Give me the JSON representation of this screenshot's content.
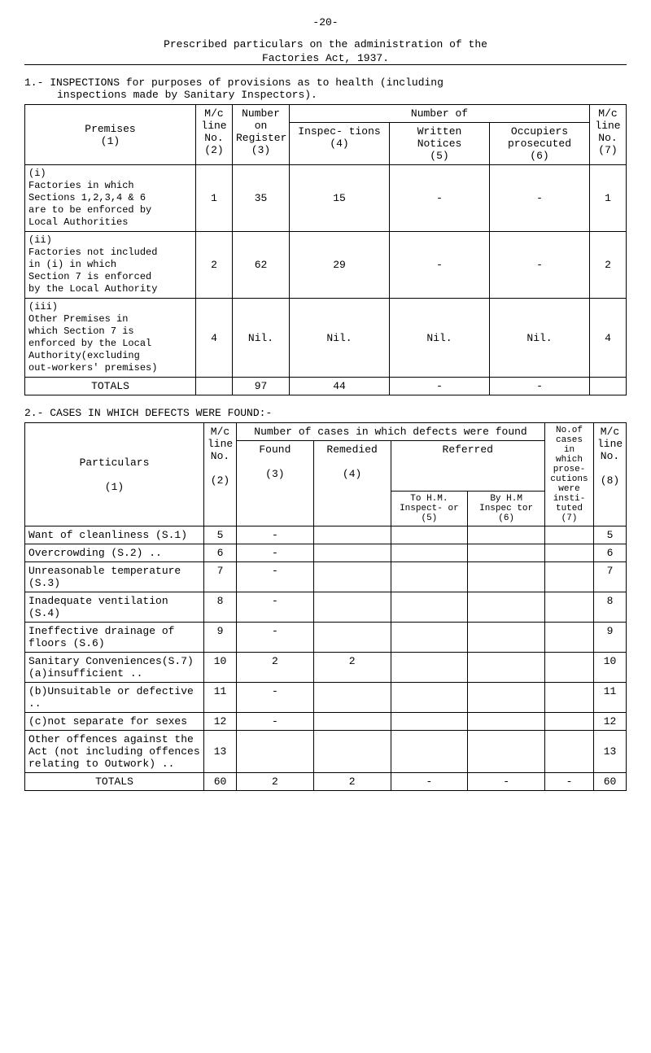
{
  "page_number": "-20-",
  "heading": {
    "line1": "Prescribed particulars on the administration of the",
    "line2": "Factories Act, 1937."
  },
  "section1": {
    "num": "1.-",
    "text_line1": "INSPECTIONS for purposes of provisions as to health (including",
    "text_line2": "inspections made by Sanitary Inspectors)."
  },
  "table1": {
    "headers": {
      "premises": "Premises",
      "premises_sub": "(1)",
      "mc_line": "M/c line No.",
      "mc_line_sub": "(2)",
      "num_on_reg": "Number on Register",
      "num_on_reg_sub": "(3)",
      "number_of": "Number of",
      "inspections": "Inspec- tions",
      "inspections_sub": "(4)",
      "written": "Written Notices",
      "written_sub": "(5)",
      "occupiers": "Occupiers prosecuted",
      "occupiers_sub": "(6)",
      "mc_line2": "M/c line No.",
      "mc_line2_sub": "(7)"
    },
    "rows": [
      {
        "roman": "(i)",
        "label": "Factories in which Sections 1,2,3,4 & 6 are to be enforced by Local Authorities",
        "c2": "1",
        "c3": "35",
        "c4": "15",
        "c5": "-",
        "c6": "-",
        "c7": "1"
      },
      {
        "roman": "(ii)",
        "label": "Factories not included in (i) in which Section 7 is enforced by the Local Authority",
        "c2": "2",
        "c3": "62",
        "c4": "29",
        "c5": "-",
        "c6": "-",
        "c7": "2"
      },
      {
        "roman": "(iii)",
        "label": "Other Premises in which Section 7 is enforced by the Local Authority(excluding out-workers' premises)",
        "c2": "4",
        "c3": "Nil.",
        "c4": "Nil.",
        "c5": "Nil.",
        "c6": "Nil.",
        "c7": "4"
      }
    ],
    "totals": {
      "label": "TOTALS",
      "c2": "",
      "c3": "97",
      "c4": "44",
      "c5": "-",
      "c6": "-",
      "c7": ""
    }
  },
  "section2": {
    "num": "2.-",
    "text": "CASES IN WHICH DEFECTS WERE FOUND:-"
  },
  "table2": {
    "headers": {
      "particulars": "Particulars",
      "particulars_sub": "(1)",
      "mc_line": "M/c line No.",
      "mc_line_sub": "(2)",
      "num_cases": "Number of cases in which defects were found",
      "found": "Found",
      "found_sub": "(3)",
      "remedied": "Remedied",
      "remedied_sub": "(4)",
      "referred": "Referred",
      "to_hm": "To H.M. Inspect- or",
      "to_hm_sub": "(5)",
      "by_hm": "By H.M Inspec tor",
      "by_hm_sub": "(6)",
      "noof": "No.of cases in which prose- cutions were insti- tuted",
      "noof_sub": "(7)",
      "mc_line2": "M/c line No.",
      "mc_line2_sub": "(8)"
    },
    "rows": [
      {
        "label": "Want of cleanliness (S.1)",
        "c2": "5",
        "c3": "-",
        "c4": "",
        "c5": "",
        "c6": "",
        "c7": "",
        "c8": "5"
      },
      {
        "label": "Overcrowding (S.2)      ..",
        "c2": "6",
        "c3": "-",
        "c4": "",
        "c5": "",
        "c6": "",
        "c7": "",
        "c8": "6"
      },
      {
        "label": "Unreasonable temperature (S.3)",
        "c2": "7",
        "c3": "-",
        "c4": "",
        "c5": "",
        "c6": "",
        "c7": "",
        "c8": "7"
      },
      {
        "label": "Inadequate ventilation (S.4)",
        "c2": "8",
        "c3": "-",
        "c4": "",
        "c5": "",
        "c6": "",
        "c7": "",
        "c8": "8"
      },
      {
        "label": "Ineffective drainage of floors          (S.6)",
        "c2": "9",
        "c3": "-",
        "c4": "",
        "c5": "",
        "c6": "",
        "c7": "",
        "c8": "9"
      },
      {
        "label": "Sanitary Conveniences(S.7) (a)insufficient      ..",
        "c2": "10",
        "c3": "2",
        "c4": "2",
        "c5": "",
        "c6": "",
        "c7": "",
        "c8": "10"
      },
      {
        "label": "(b)Unsuitable or defective          ..",
        "c2": "11",
        "c3": "-",
        "c4": "",
        "c5": "",
        "c6": "",
        "c7": "",
        "c8": "11"
      },
      {
        "label": "(c)not separate for sexes",
        "c2": "12",
        "c3": "-",
        "c4": "",
        "c5": "",
        "c6": "",
        "c7": "",
        "c8": "12"
      },
      {
        "label": "Other offences against the Act (not including offences relating to Outwork)             ..",
        "c2": "13",
        "c3": "",
        "c4": "",
        "c5": "",
        "c6": "",
        "c7": "",
        "c8": "13"
      }
    ],
    "totals": {
      "label": "TOTALS",
      "c2": "60",
      "c3": "2",
      "c4": "2",
      "c5": "-",
      "c6": "-",
      "c7": "-",
      "c8": "60"
    }
  }
}
